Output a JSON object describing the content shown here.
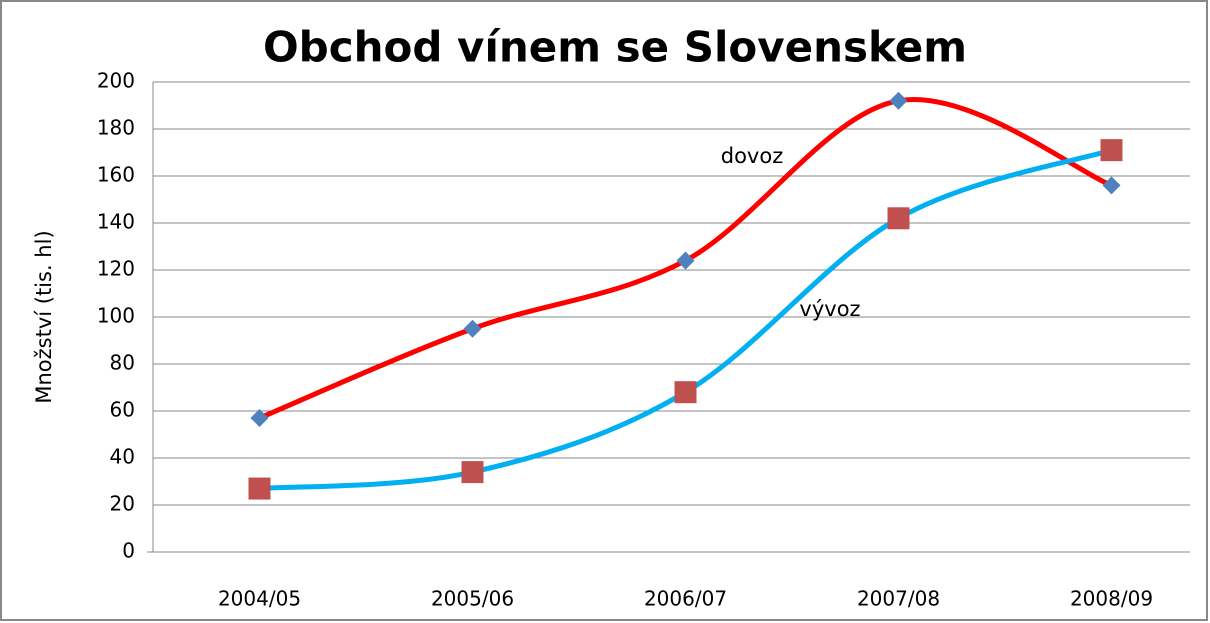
{
  "chart_data": {
    "type": "line",
    "title": "Obchod vínem se Slovenskem",
    "y_label": "Množství (tis. hl)",
    "categories": [
      "2004/05",
      "2005/06",
      "2006/07",
      "2007/08",
      "2008/09"
    ],
    "series": [
      {
        "name": "dovoz",
        "color": "#ff0000",
        "marker_color": "#4f81bd",
        "marker": "diamond",
        "values": [
          57,
          95,
          124,
          192,
          156
        ]
      },
      {
        "name": "vývoz",
        "color": "#00b0f0",
        "marker_color": "#c0504d",
        "marker": "square",
        "values": [
          27,
          34,
          68,
          142,
          171
        ]
      }
    ],
    "ylim": [
      0,
      200
    ],
    "yticks": [
      0,
      20,
      40,
      60,
      80,
      100,
      120,
      140,
      160,
      180,
      200
    ],
    "grid": true,
    "smooth": true
  }
}
